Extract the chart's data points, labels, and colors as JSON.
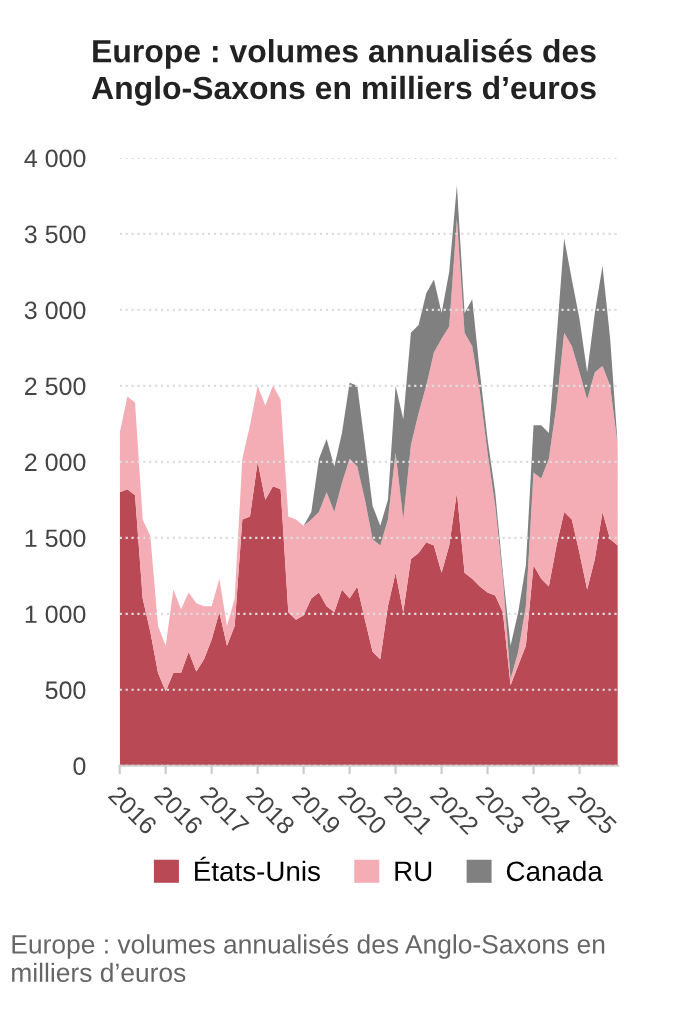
{
  "chart_data": {
    "type": "area",
    "stacked": true,
    "title": "Europe : volumes annualisés des\nAnglo-Saxons en milliers d’euros",
    "categories": [
      "2016",
      null,
      null,
      null,
      null,
      null,
      "2016",
      null,
      null,
      null,
      null,
      null,
      "2017",
      null,
      null,
      null,
      null,
      null,
      "2018",
      null,
      null,
      null,
      null,
      null,
      "2019",
      null,
      null,
      null,
      null,
      null,
      "2020",
      null,
      null,
      null,
      null,
      null,
      "2021",
      null,
      null,
      null,
      null,
      null,
      "2022",
      null,
      null,
      null,
      null,
      null,
      "2023",
      null,
      null,
      null,
      null,
      null,
      "2024",
      null,
      null,
      null,
      null,
      null,
      "2025",
      null,
      null,
      null,
      null,
      null
    ],
    "series": [
      {
        "name": "États-Unis",
        "color": "#b94a55",
        "values": [
          1800,
          1820,
          1780,
          1100,
          880,
          610,
          490,
          610,
          610,
          750,
          620,
          700,
          830,
          1010,
          790,
          920,
          1620,
          1640,
          2000,
          1750,
          1840,
          1820,
          1010,
          960,
          990,
          1100,
          1140,
          1050,
          1010,
          1160,
          1100,
          1180,
          960,
          750,
          700,
          1050,
          1270,
          1010,
          1360,
          1400,
          1470,
          1450,
          1270,
          1450,
          1800,
          1270,
          1230,
          1180,
          1140,
          1120,
          1010,
          530,
          660,
          790,
          1320,
          1230,
          1180,
          1450,
          1670,
          1620,
          1400,
          1160,
          1360,
          1670,
          1490,
          1450
        ]
      },
      {
        "name": "RU",
        "color": "#f4adb5",
        "values": [
          390,
          610,
          610,
          520,
          630,
          310,
          300,
          550,
          420,
          390,
          450,
          350,
          220,
          220,
          130,
          180,
          400,
          600,
          500,
          620,
          660,
          590,
          630,
          660,
          590,
          520,
          530,
          750,
          660,
          700,
          920,
          790,
          790,
          740,
          750,
          570,
          790,
          610,
          750,
          920,
          1030,
          1270,
          1540,
          1440,
          1800,
          1580,
          1530,
          1280,
          920,
          590,
          220,
          40,
          90,
          260,
          610,
          660,
          840,
          920,
          1180,
          1140,
          1190,
          1250,
          1230,
          960,
          1010,
          650
        ]
      },
      {
        "name": "Canada",
        "color": "#808080",
        "values": [
          0,
          0,
          0,
          0,
          0,
          0,
          0,
          0,
          0,
          0,
          0,
          0,
          0,
          0,
          0,
          0,
          0,
          0,
          0,
          0,
          0,
          0,
          0,
          0,
          0,
          50,
          350,
          350,
          300,
          330,
          500,
          530,
          360,
          220,
          130,
          130,
          440,
          660,
          740,
          580,
          610,
          480,
          170,
          360,
          220,
          130,
          310,
          130,
          90,
          90,
          40,
          220,
          260,
          270,
          310,
          350,
          170,
          440,
          620,
          440,
          350,
          180,
          390,
          660,
          310,
          0
        ]
      }
    ],
    "ylim": [
      0,
      4000
    ],
    "yticks": [
      0,
      500,
      {
        "value": 1000,
        "label": "1 000"
      },
      {
        "value": 1500,
        "label": "1 500"
      },
      {
        "value": 2000,
        "label": "2 000"
      },
      {
        "value": 2500,
        "label": "2 500"
      },
      {
        "value": 3000,
        "label": "3 000"
      },
      {
        "value": 3500,
        "label": "3 500"
      },
      {
        "value": 4000,
        "label": "4 000"
      }
    ],
    "grid": "y",
    "legend": "bottom",
    "annotations": [
      "Europe : volumes annualisés des Anglo-Saxons en milliers d’euros"
    ]
  }
}
